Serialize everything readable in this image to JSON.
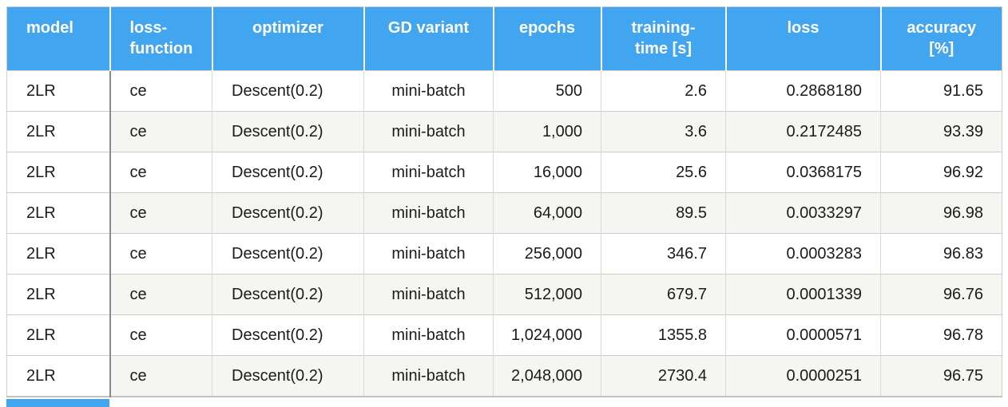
{
  "colors": {
    "header_bg": "#42a5f0",
    "header_text": "#ffffff",
    "row_bg": "#ffffff",
    "stripe_bg": "#f5f5f2",
    "body_text": "#1b1b1b",
    "first_column_divider": "#8a8a8a",
    "cell_divider": "#d9d9d9",
    "row_divider": "#cccccc"
  },
  "table": {
    "columns": [
      {
        "label": "model",
        "align": "left",
        "width": 129
      },
      {
        "label": "loss-\nfunction",
        "align": "left",
        "width": 128
      },
      {
        "label": "optimizer",
        "align": "center",
        "width": 190
      },
      {
        "label": "GD variant",
        "align": "center",
        "width": 162
      },
      {
        "label": "epochs",
        "align": "center",
        "width": 135
      },
      {
        "label": "training-\ntime [s]",
        "align": "center",
        "width": 156
      },
      {
        "label": "loss",
        "align": "center",
        "width": 194
      },
      {
        "label": "accuracy\n[%]",
        "align": "center",
        "width": 152
      }
    ],
    "body_align": [
      "left",
      "left",
      "left",
      "center",
      "right",
      "right",
      "right",
      "right"
    ],
    "rows": [
      [
        "2LR",
        "ce",
        "Descent(0.2)",
        "mini-batch",
        "500",
        "2.6",
        "0.2868180",
        "91.65"
      ],
      [
        "2LR",
        "ce",
        "Descent(0.2)",
        "mini-batch",
        "1,000",
        "3.6",
        "0.2172485",
        "93.39"
      ],
      [
        "2LR",
        "ce",
        "Descent(0.2)",
        "mini-batch",
        "16,000",
        "25.6",
        "0.0368175",
        "96.92"
      ],
      [
        "2LR",
        "ce",
        "Descent(0.2)",
        "mini-batch",
        "64,000",
        "89.5",
        "0.0033297",
        "96.98"
      ],
      [
        "2LR",
        "ce",
        "Descent(0.2)",
        "mini-batch",
        "256,000",
        "346.7",
        "0.0003283",
        "96.83"
      ],
      [
        "2LR",
        "ce",
        "Descent(0.2)",
        "mini-batch",
        "512,000",
        "679.7",
        "0.0001339",
        "96.76"
      ],
      [
        "2LR",
        "ce",
        "Descent(0.2)",
        "mini-batch",
        "1,024,000",
        "1355.8",
        "0.0000571",
        "96.78"
      ],
      [
        "2LR",
        "ce",
        "Descent(0.2)",
        "mini-batch",
        "2,048,000",
        "2730.4",
        "0.0000251",
        "96.75"
      ]
    ]
  },
  "next_table_fragment": {
    "description": "top edge of following table header, cut off at bottom-left"
  },
  "chart_data": {
    "type": "table",
    "title": "",
    "columns": [
      "model",
      "loss-function",
      "optimizer",
      "GD variant",
      "epochs",
      "training-time [s]",
      "loss",
      "accuracy [%]"
    ],
    "rows": [
      [
        "2LR",
        "ce",
        "Descent(0.2)",
        "mini-batch",
        500,
        2.6,
        0.286818,
        91.65
      ],
      [
        "2LR",
        "ce",
        "Descent(0.2)",
        "mini-batch",
        1000,
        3.6,
        0.2172485,
        93.39
      ],
      [
        "2LR",
        "ce",
        "Descent(0.2)",
        "mini-batch",
        16000,
        25.6,
        0.0368175,
        96.92
      ],
      [
        "2LR",
        "ce",
        "Descent(0.2)",
        "mini-batch",
        64000,
        89.5,
        0.0033297,
        96.98
      ],
      [
        "2LR",
        "ce",
        "Descent(0.2)",
        "mini-batch",
        256000,
        346.7,
        0.0003283,
        96.83
      ],
      [
        "2LR",
        "ce",
        "Descent(0.2)",
        "mini-batch",
        512000,
        679.7,
        0.0001339,
        96.76
      ],
      [
        "2LR",
        "ce",
        "Descent(0.2)",
        "mini-batch",
        1024000,
        1355.8,
        5.71e-05,
        96.78
      ],
      [
        "2LR",
        "ce",
        "Descent(0.2)",
        "mini-batch",
        2048000,
        2730.4,
        2.51e-05,
        96.75
      ]
    ]
  }
}
